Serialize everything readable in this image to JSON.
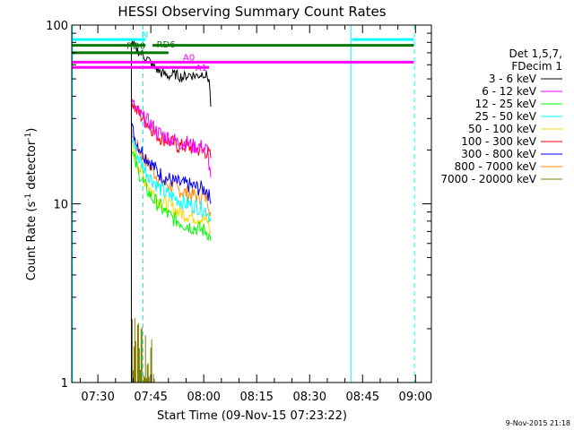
{
  "chart_data": {
    "type": "line",
    "title": "HESSI Observing Summary Count Rates",
    "xlabel": "Start Time (09-Nov-15 07:23:22)",
    "ylabel_main": "Count Rate (s",
    "ylabel_sup1": "-1",
    "ylabel_mid": " detector",
    "ylabel_sup2": "-1",
    "ylabel_end": ")",
    "ylabel": "Count Rate (s-1 detector-1)",
    "yscale": "log",
    "ylim": [
      1,
      100
    ],
    "xlim_minutes": [
      -7.4,
      94.5
    ],
    "x_ticks": [
      {
        "label": "07:30",
        "minute": 0
      },
      {
        "label": "07:45",
        "minute": 15
      },
      {
        "label": "08:00",
        "minute": 30
      },
      {
        "label": "08:15",
        "minute": 45
      },
      {
        "label": "08:30",
        "minute": 60
      },
      {
        "label": "08:45",
        "minute": 75
      },
      {
        "label": "09:00",
        "minute": 90
      }
    ],
    "y_ticks": [
      {
        "label": "1",
        "value": 1
      },
      {
        "label": "10",
        "value": 10
      },
      {
        "label": "100",
        "value": 100
      }
    ],
    "legend": {
      "header1": "Det 1,5,7,",
      "header2": "FDecim 1",
      "placement": "right"
    },
    "series": [
      {
        "name": "3 - 6 keV",
        "color": "#000000",
        "x": [
          9.5,
          10.5,
          12,
          14,
          16,
          18,
          20,
          22,
          24,
          26,
          28,
          30,
          31.5,
          32
        ],
        "y": [
          78,
          75,
          70,
          65,
          58,
          54,
          52,
          53,
          51,
          53,
          52,
          54,
          50,
          35
        ]
      },
      {
        "name": "6 - 12 keV",
        "color": "#ff00ff",
        "x": [
          9.5,
          11,
          13,
          15,
          17,
          19,
          21,
          23,
          25,
          27,
          29,
          31,
          32
        ],
        "y": [
          37,
          33,
          30,
          28,
          25,
          24,
          23,
          22,
          22,
          21,
          21,
          20,
          14
        ]
      },
      {
        "name": "12 - 25 keV",
        "color": "#00ff00",
        "x": [
          9.5,
          11,
          13,
          15,
          17,
          19,
          21,
          23,
          25,
          27,
          29,
          31,
          32
        ],
        "y": [
          20,
          16,
          13,
          11,
          10,
          9,
          8.3,
          8,
          7.6,
          7.4,
          7.2,
          7,
          6.2
        ]
      },
      {
        "name": "25 - 50 keV",
        "color": "#00ffff",
        "x": [
          9.5,
          11,
          13,
          15,
          17,
          19,
          21,
          23,
          25,
          27,
          29,
          31,
          32
        ],
        "y": [
          24,
          19,
          16,
          14,
          12.5,
          11.5,
          11,
          10.5,
          10,
          9.8,
          9.5,
          9.2,
          8
        ]
      },
      {
        "name": "50 - 100 keV",
        "color": "#ffd700",
        "x": [
          9.5,
          11,
          13,
          15,
          17,
          19,
          21,
          23,
          25,
          27,
          29,
          31,
          32
        ],
        "y": [
          22,
          17,
          14,
          12,
          10.5,
          10,
          9.5,
          9,
          8.7,
          8.5,
          8.3,
          8,
          7
        ]
      },
      {
        "name": "100 - 300 keV",
        "color": "#ff0000",
        "x": [
          9.5,
          11,
          13,
          15,
          17,
          19,
          21,
          23,
          25,
          27,
          29,
          31,
          32
        ],
        "y": [
          38,
          33,
          30,
          27,
          24,
          23,
          22,
          21,
          21,
          20.5,
          20,
          19.5,
          18
        ]
      },
      {
        "name": "300 - 800 keV",
        "color": "#0000ff",
        "x": [
          9.5,
          11,
          13,
          15,
          17,
          19,
          21,
          23,
          25,
          27,
          29,
          31,
          32
        ],
        "y": [
          27,
          22,
          19,
          17,
          15,
          14,
          13.5,
          13,
          12.8,
          12.5,
          12.2,
          12,
          10
        ]
      },
      {
        "name": "800 - 7000 keV",
        "color": "#ff8c00",
        "x": [
          9.5,
          11,
          13,
          15,
          17,
          19,
          21,
          23,
          25,
          27,
          29,
          31,
          32
        ],
        "y": [
          26,
          21,
          18,
          16,
          14,
          13,
          12.5,
          12,
          11.5,
          11.2,
          11,
          10.8,
          9
        ]
      },
      {
        "name": "7000 - 20000 keV",
        "color": "#808000",
        "x": [
          9.5,
          10,
          10.5,
          11,
          11.5,
          12,
          12.5,
          13,
          13.5,
          14,
          14.5,
          15,
          15.5,
          16
        ],
        "y": [
          2.9,
          1.6,
          2.4,
          1.2,
          2.0,
          1.4,
          1.8,
          1.1,
          1.6,
          1.2,
          1.4,
          1.1,
          1.3,
          1.05
        ]
      }
    ],
    "flag_bars": [
      {
        "label": "N",
        "color": "#00ffff",
        "x_start": -7.4,
        "x_end": 13.5,
        "y": 83
      },
      {
        "label": "RD0",
        "color": "#007700",
        "x_start": -7.4,
        "x_end": 13.5,
        "y": 77
      },
      {
        "label": "RD6",
        "color": "#007700",
        "x_start": -7.4,
        "x_end": 20,
        "y": 70
      },
      {
        "label": "A0",
        "color": "#ff00ff",
        "x_start": -7.4,
        "x_end": 31.5,
        "y": 62
      },
      {
        "label": "A1",
        "color": "#ff00ff",
        "x_start": -7.4,
        "x_end": 31.5,
        "y": 58
      }
    ],
    "flag_bars_right": [
      {
        "color": "#00ffff",
        "x_start": 72,
        "x_end": 89.5,
        "y": 83
      },
      {
        "color": "#007700",
        "x_start": 15.5,
        "x_end": 89.5,
        "y": 77
      },
      {
        "color": "#ff00ff",
        "x_start": 31.5,
        "x_end": 89.5,
        "y": 62
      }
    ],
    "vertical_lines": [
      {
        "minute": -7.2,
        "style": "solid",
        "color": "#00ffff"
      },
      {
        "minute": 12.8,
        "style": "dashed",
        "color": "#00ffff"
      },
      {
        "minute": 71.7,
        "style": "solid",
        "color": "#00ffff"
      },
      {
        "minute": 89.7,
        "style": "dashed",
        "color": "#00ffff"
      }
    ]
  },
  "footer": {
    "timestamp": "9-Nov-2015 21:18"
  }
}
